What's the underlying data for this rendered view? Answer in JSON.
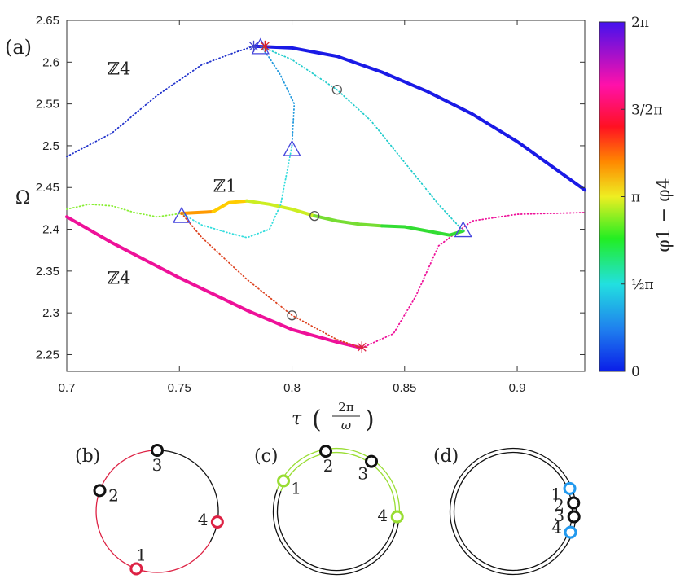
{
  "chart_data": {
    "type": "line",
    "panel_label": "(a)",
    "xlabel": "τ",
    "xlabel_unit_num": "2π",
    "xlabel_unit_den": "ω",
    "ylabel": "Ω",
    "xlim": [
      0.7,
      0.93
    ],
    "ylim": [
      2.23,
      2.65
    ],
    "x_ticks": [
      {
        "value": 0.7,
        "label": "0.7"
      },
      {
        "value": 0.75,
        "label": "0.75"
      },
      {
        "value": 0.8,
        "label": "0.8"
      },
      {
        "value": 0.85,
        "label": "0.85"
      },
      {
        "value": 0.9,
        "label": "0.9"
      }
    ],
    "y_ticks": [
      {
        "value": 2.25,
        "label": "2.25"
      },
      {
        "value": 2.3,
        "label": "2.3"
      },
      {
        "value": 2.35,
        "label": "2.35"
      },
      {
        "value": 2.4,
        "label": "2.4"
      },
      {
        "value": 2.45,
        "label": "2.45"
      },
      {
        "value": 2.5,
        "label": "2.5"
      },
      {
        "value": 2.55,
        "label": "2.55"
      },
      {
        "value": 2.6,
        "label": "2.6"
      },
      {
        "value": 2.65,
        "label": "2.65"
      }
    ],
    "colorbar": {
      "label": "φ1 − φ4",
      "range": [
        0,
        6.2832
      ],
      "ticks": [
        {
          "value": 0,
          "label": "0"
        },
        {
          "value": 1.5708,
          "label": "½π"
        },
        {
          "value": 3.1416,
          "label": "π"
        },
        {
          "value": 4.7124,
          "label": "3/2π"
        },
        {
          "value": 6.2832,
          "label": "2π"
        }
      ]
    },
    "annotations": [
      {
        "text": "ℤ4",
        "x": 0.718,
        "y": 2.585
      },
      {
        "text": "ℤ1",
        "x": 0.765,
        "y": 2.445
      },
      {
        "text": "ℤ4",
        "x": 0.718,
        "y": 2.335
      }
    ],
    "series": [
      {
        "style": "solid",
        "color": "#1a1ae6",
        "x": [
          0.783,
          0.8,
          0.82,
          0.84,
          0.86,
          0.88,
          0.9,
          0.93
        ],
        "y": [
          2.619,
          2.617,
          2.607,
          2.588,
          2.565,
          2.538,
          2.505,
          2.447
        ]
      },
      {
        "style": "dotted",
        "color": "#2233cc",
        "x": [
          0.7,
          0.72,
          0.74,
          0.76,
          0.775,
          0.783
        ],
        "y": [
          2.487,
          2.515,
          2.56,
          2.597,
          2.612,
          2.619
        ]
      },
      {
        "style": "solid",
        "color": "#ee1199",
        "x": [
          0.7,
          0.72,
          0.75,
          0.78,
          0.8,
          0.82,
          0.831
        ],
        "y": [
          2.415,
          2.384,
          2.342,
          2.303,
          2.28,
          2.265,
          2.258
        ]
      },
      {
        "style": "dotted",
        "color": "#ee1199",
        "x": [
          0.831,
          0.845,
          0.855,
          0.865,
          0.88,
          0.9,
          0.93
        ],
        "y": [
          2.258,
          2.275,
          2.32,
          2.38,
          2.41,
          2.418,
          2.42
        ]
      },
      {
        "style": "solid",
        "color": "#ff9900",
        "x": [
          0.751,
          0.758,
          0.765
        ],
        "y": [
          2.419,
          2.42,
          2.421
        ]
      },
      {
        "style": "solid",
        "color": "#ffcc00",
        "x": [
          0.765,
          0.772,
          0.78
        ],
        "y": [
          2.421,
          2.432,
          2.434
        ]
      },
      {
        "style": "solid",
        "color": "#ccee22",
        "x": [
          0.78,
          0.79,
          0.8,
          0.81
        ],
        "y": [
          2.434,
          2.43,
          2.424,
          2.416
        ]
      },
      {
        "style": "solid",
        "color": "#77dd33",
        "x": [
          0.81,
          0.82,
          0.83,
          0.84
        ],
        "y": [
          2.416,
          2.41,
          2.406,
          2.404
        ]
      },
      {
        "style": "solid",
        "color": "#33dd33",
        "x": [
          0.84,
          0.85,
          0.86,
          0.87,
          0.876
        ],
        "y": [
          2.404,
          2.403,
          2.398,
          2.393,
          2.398
        ]
      },
      {
        "style": "dotted",
        "color": "#88ee33",
        "x": [
          0.7,
          0.71,
          0.72,
          0.73,
          0.74,
          0.751
        ],
        "y": [
          2.424,
          2.43,
          2.428,
          2.42,
          2.415,
          2.419
        ]
      },
      {
        "style": "dotted",
        "color": "#33dddd",
        "x": [
          0.751,
          0.76,
          0.77,
          0.78,
          0.79,
          0.795,
          0.8
        ],
        "y": [
          2.419,
          2.405,
          2.397,
          2.39,
          2.4,
          2.43,
          2.5
        ]
      },
      {
        "style": "dotted",
        "color": "#2299dd",
        "x": [
          0.8,
          0.801,
          0.795,
          0.79,
          0.786
        ],
        "y": [
          2.5,
          2.55,
          2.584,
          2.605,
          2.619
        ]
      },
      {
        "style": "dotted",
        "color": "#22cccc",
        "x": [
          0.786,
          0.8,
          0.82,
          0.835,
          0.85,
          0.865,
          0.876
        ],
        "y": [
          2.619,
          2.603,
          2.567,
          2.53,
          2.48,
          2.43,
          2.398
        ]
      },
      {
        "style": "dotted",
        "color": "#dd4422",
        "x": [
          0.751,
          0.76,
          0.78,
          0.8,
          0.82,
          0.831
        ],
        "y": [
          2.419,
          2.39,
          2.34,
          2.297,
          2.268,
          2.258
        ]
      }
    ],
    "markers": [
      {
        "shape": "triangle",
        "color": "#4444dd",
        "x": 0.751,
        "y": 2.416
      },
      {
        "shape": "triangle",
        "color": "#4444dd",
        "x": 0.8,
        "y": 2.496
      },
      {
        "shape": "triangle",
        "color": "#4444dd",
        "x": 0.786,
        "y": 2.618
      },
      {
        "shape": "triangle",
        "color": "#4444dd",
        "x": 0.876,
        "y": 2.399
      },
      {
        "shape": "circle",
        "color": "#555555",
        "x": 0.82,
        "y": 2.567
      },
      {
        "shape": "circle",
        "color": "#555555",
        "x": 0.81,
        "y": 2.416
      },
      {
        "shape": "circle",
        "color": "#555555",
        "x": 0.8,
        "y": 2.297
      },
      {
        "shape": "star",
        "color": "#4444cc",
        "x": 0.783,
        "y": 2.619
      },
      {
        "shape": "star",
        "color": "#dd2222",
        "x": 0.788,
        "y": 2.619
      },
      {
        "shape": "star",
        "color": "#dd2244",
        "x": 0.831,
        "y": 2.259
      }
    ]
  },
  "phase_panels": [
    {
      "label": "(b)",
      "ring": "single",
      "arcs": [
        {
          "from": 90,
          "to": 330,
          "color": "#dd2244"
        },
        {
          "from": 330,
          "to": 450,
          "color": "#111111"
        }
      ],
      "oscillators": [
        {
          "id": "1",
          "angle": 250,
          "color": "#dd2244"
        },
        {
          "id": "2",
          "angle": 160,
          "color": "#111111"
        },
        {
          "id": "3",
          "angle": 90,
          "color": "#111111"
        },
        {
          "id": "4",
          "angle": 350,
          "color": "#dd2244"
        }
      ]
    },
    {
      "label": "(c)",
      "ring": "double",
      "arcs": [
        {
          "from": 0,
          "to": 160,
          "color": "#99dd33"
        },
        {
          "from": 160,
          "to": 360,
          "color": "#111111"
        }
      ],
      "oscillators": [
        {
          "id": "1",
          "angle": 150,
          "color": "#99dd33"
        },
        {
          "id": "2",
          "angle": 100,
          "color": "#111111"
        },
        {
          "id": "3",
          "angle": 55,
          "color": "#111111"
        },
        {
          "id": "4",
          "angle": 355,
          "color": "#99dd33"
        }
      ]
    },
    {
      "label": "(d)",
      "ring": "double",
      "arcs": [
        {
          "from": 0,
          "to": 360,
          "color": "#111111"
        }
      ],
      "oscillators": [
        {
          "id": "1",
          "angle": 22,
          "color": "#2299ee"
        },
        {
          "id": "2",
          "angle": 8,
          "color": "#111111"
        },
        {
          "id": "3",
          "angle": 355,
          "color": "#111111"
        },
        {
          "id": "4",
          "angle": 340,
          "color": "#2299ee"
        }
      ]
    }
  ]
}
